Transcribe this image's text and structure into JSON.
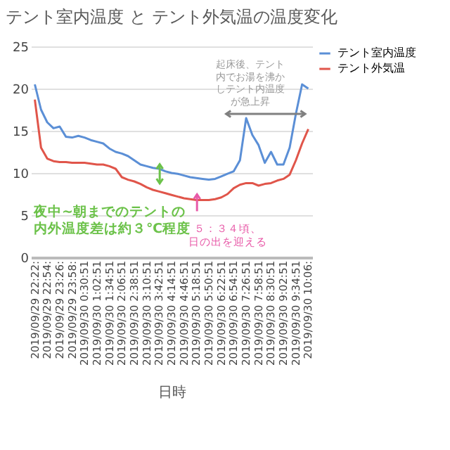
{
  "chart_data": {
    "type": "line",
    "title": "テント室内温度 と テント外気温の温度変化",
    "xlabel": "日時",
    "x": [
      "2019-09-29T22:22",
      "2019-09-29T22:38",
      "2019-09-29T22:54",
      "2019-09-29T23:10",
      "2019-09-29T23:26",
      "2019-09-29T23:42",
      "2019-09-29T23:58",
      "2019-09-30T00:14",
      "2019-09-30T00:30",
      "2019-09-30T00:46",
      "2019-09-30T01:02",
      "2019-09-30T01:18",
      "2019-09-30T01:34",
      "2019-09-30T01:50",
      "2019-09-30T02:06",
      "2019-09-30T02:22",
      "2019-09-30T02:38",
      "2019-09-30T02:54",
      "2019-09-30T03:10",
      "2019-09-30T03:26",
      "2019-09-30T03:42",
      "2019-09-30T03:58",
      "2019-09-30T04:14",
      "2019-09-30T04:30",
      "2019-09-30T04:46",
      "2019-09-30T05:02",
      "2019-09-30T05:18",
      "2019-09-30T05:34",
      "2019-09-30T05:50",
      "2019-09-30T06:06",
      "2019-09-30T06:22",
      "2019-09-30T06:38",
      "2019-09-30T06:54",
      "2019-09-30T07:10",
      "2019-09-30T07:26",
      "2019-09-30T07:42",
      "2019-09-30T07:58",
      "2019-09-30T08:14",
      "2019-09-30T08:30",
      "2019-09-30T08:46",
      "2019-09-30T09:02",
      "2019-09-30T09:18",
      "2019-09-30T09:34",
      "2019-09-30T09:50",
      "2019-09-30T10:06"
    ],
    "xlim": [
      "2019-09-29T22:12",
      "2019-09-30T10:16"
    ],
    "xticks": [
      {
        "value": "2019-09-29T22:22",
        "label": "2019/09/29 22:22:"
      },
      {
        "value": "2019-09-29T22:54",
        "label": "2019/09/29 22:54:"
      },
      {
        "value": "2019-09-29T23:26",
        "label": "2019/09/29 23:26:"
      },
      {
        "value": "2019-09-29T23:58",
        "label": "2019/09/29 23:58:"
      },
      {
        "value": "2019-09-30T00:30",
        "label": "2019/09/30 0:30:51"
      },
      {
        "value": "2019-09-30T01:02",
        "label": "2019/09/30 1:02:51"
      },
      {
        "value": "2019-09-30T01:34",
        "label": "2019/09/30 1:34:51"
      },
      {
        "value": "2019-09-30T02:06",
        "label": "2019/09/30 2:06:51"
      },
      {
        "value": "2019-09-30T02:38",
        "label": "2019/09/30 2:38:51"
      },
      {
        "value": "2019-09-30T03:10",
        "label": "2019/09/30 3:10:51"
      },
      {
        "value": "2019-09-30T03:42",
        "label": "2019/09/30 3:42:51"
      },
      {
        "value": "2019-09-30T04:14",
        "label": "2019/09/30 4:14:51"
      },
      {
        "value": "2019-09-30T04:46",
        "label": "2019/09/30 4:46:51"
      },
      {
        "value": "2019-09-30T05:18",
        "label": "2019/09/30 5:18:51"
      },
      {
        "value": "2019-09-30T05:50",
        "label": "2019/09/30 5:50:51"
      },
      {
        "value": "2019-09-30T06:22",
        "label": "2019/09/30 6:22:51"
      },
      {
        "value": "2019-09-30T06:54",
        "label": "2019/09/30 6:54:51"
      },
      {
        "value": "2019-09-30T07:26",
        "label": "2019/09/30 7:26:51"
      },
      {
        "value": "2019-09-30T07:58",
        "label": "2019/09/30 7:58:51"
      },
      {
        "value": "2019-09-30T08:30",
        "label": "2019/09/30 8:30:51"
      },
      {
        "value": "2019-09-30T09:02",
        "label": "2019/09/30 9:02:51"
      },
      {
        "value": "2019-09-30T09:34",
        "label": "2019/09/30 9:34:51"
      },
      {
        "value": "2019-09-30T10:06",
        "label": "2019/09/30 10:06:"
      }
    ],
    "series": [
      {
        "name": "テント室内温度",
        "color": "#5b8fd6",
        "values": [
          20.5,
          17.5,
          16,
          15.3,
          15.5,
          14.3,
          14.2,
          14.4,
          14.2,
          13.9,
          13.7,
          13.5,
          12.9,
          12.5,
          12.3,
          12,
          11.5,
          11,
          10.8,
          10.6,
          10.5,
          10.2,
          10,
          9.9,
          9.7,
          9.5,
          9.4,
          9.3,
          9.2,
          9.3,
          9.6,
          9.9,
          10.2,
          11.5,
          16.5,
          14.5,
          13.3,
          11.2,
          12.5,
          11,
          11,
          13,
          17,
          20.5,
          20
        ]
      },
      {
        "name": "テント外気温",
        "color": "#e0554a",
        "values": [
          18.7,
          13,
          11.7,
          11.4,
          11.3,
          11.3,
          11.2,
          11.2,
          11.2,
          11.1,
          11,
          11,
          10.8,
          10.5,
          9.5,
          9.2,
          9,
          8.7,
          8.3,
          8,
          7.8,
          7.6,
          7.4,
          7.2,
          7,
          6.9,
          6.8,
          6.8,
          6.8,
          6.9,
          7.1,
          7.5,
          8.2,
          8.6,
          8.8,
          8.8,
          8.5,
          8.7,
          8.8,
          9.1,
          9.3,
          9.8,
          11.5,
          13.5,
          15.2
        ]
      }
    ],
    "ylim": [
      0,
      25
    ],
    "yticks": [
      0,
      5,
      10,
      15,
      20,
      25
    ],
    "grid": "y",
    "legend": "right",
    "marker": "none",
    "line_style": "solid",
    "annotations": [
      "起床後、テント内でお湯を沸かしテント内温度が急上昇",
      "夜中~朝までのテントの内外温度差は約３℃程度",
      {
        "text": "５：３４頃、日の出を迎える",
        "x": "2019-09-30T05:34",
        "y": 6.8
      }
    ]
  }
}
